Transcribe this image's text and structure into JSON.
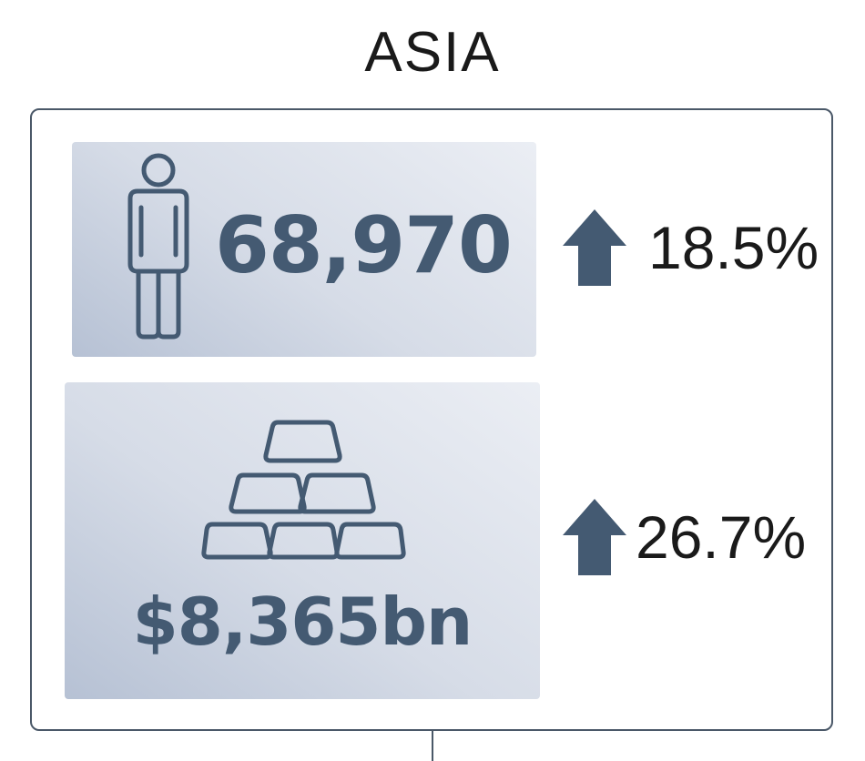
{
  "region": {
    "title": "ASIA"
  },
  "population": {
    "value": "68,970",
    "change": "18.5%",
    "icon": "person-icon",
    "arrow_icon": "arrow-up-icon"
  },
  "gdp": {
    "value": "$8,365bn",
    "change": "26.7%",
    "icon": "gold-bars-icon",
    "arrow_icon": "arrow-up-icon"
  },
  "colors": {
    "accent": "#445a72",
    "text": "#1a1a1a",
    "border": "#4a5868"
  }
}
